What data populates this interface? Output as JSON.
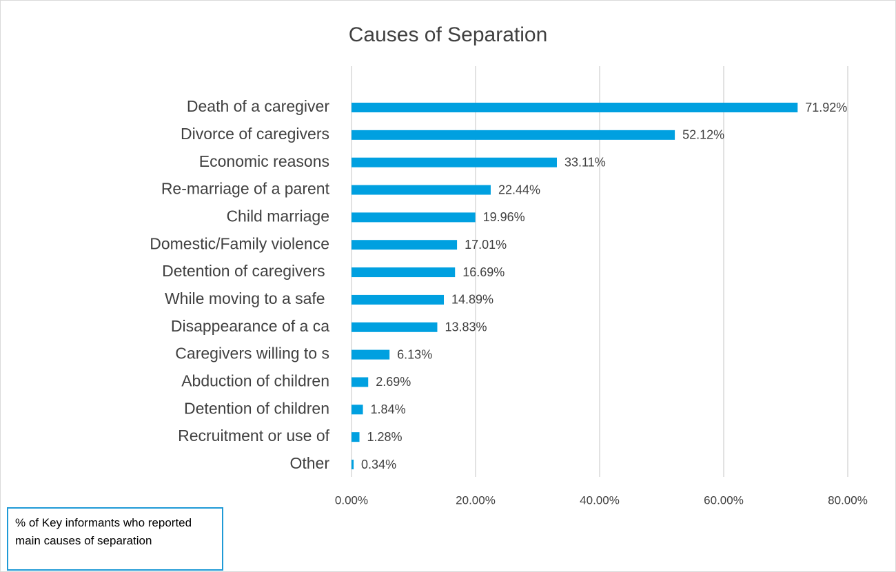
{
  "chart_data": {
    "type": "barh",
    "title": "Causes of Separation",
    "categories": [
      "Death of a caregiver",
      "Divorce of caregivers",
      "Economic reasons",
      "Re-marriage of a parent",
      "Child marriage",
      "Domestic/Family violence",
      "Detention of caregivers ",
      "While moving to a safe ",
      "Disappearance of a ca",
      "Caregivers willing to s",
      "Abduction of children",
      "Detention of children",
      "Recruitment or use of",
      "Other"
    ],
    "values": [
      71.92,
      52.12,
      33.11,
      22.44,
      19.96,
      17.01,
      16.69,
      14.89,
      13.83,
      6.13,
      2.69,
      1.84,
      1.28,
      0.34
    ],
    "value_labels": [
      "71.92%",
      "52.12%",
      "33.11%",
      "22.44%",
      "19.96%",
      "17.01%",
      "16.69%",
      "14.89%",
      "13.83%",
      "6.13%",
      "2.69%",
      "1.84%",
      "1.28%",
      "0.34%"
    ],
    "color": "#00a0e0",
    "xlim": [
      0,
      80
    ],
    "xticks": [
      {
        "value": 0,
        "label": "0.00%"
      },
      {
        "value": 20,
        "label": "20.00%"
      },
      {
        "value": 40,
        "label": "40.00%"
      },
      {
        "value": 60,
        "label": "60.00%"
      },
      {
        "value": 80,
        "label": "80.00%"
      }
    ],
    "grid": true,
    "annotation": "% of Key informants who reported main causes of separation"
  }
}
